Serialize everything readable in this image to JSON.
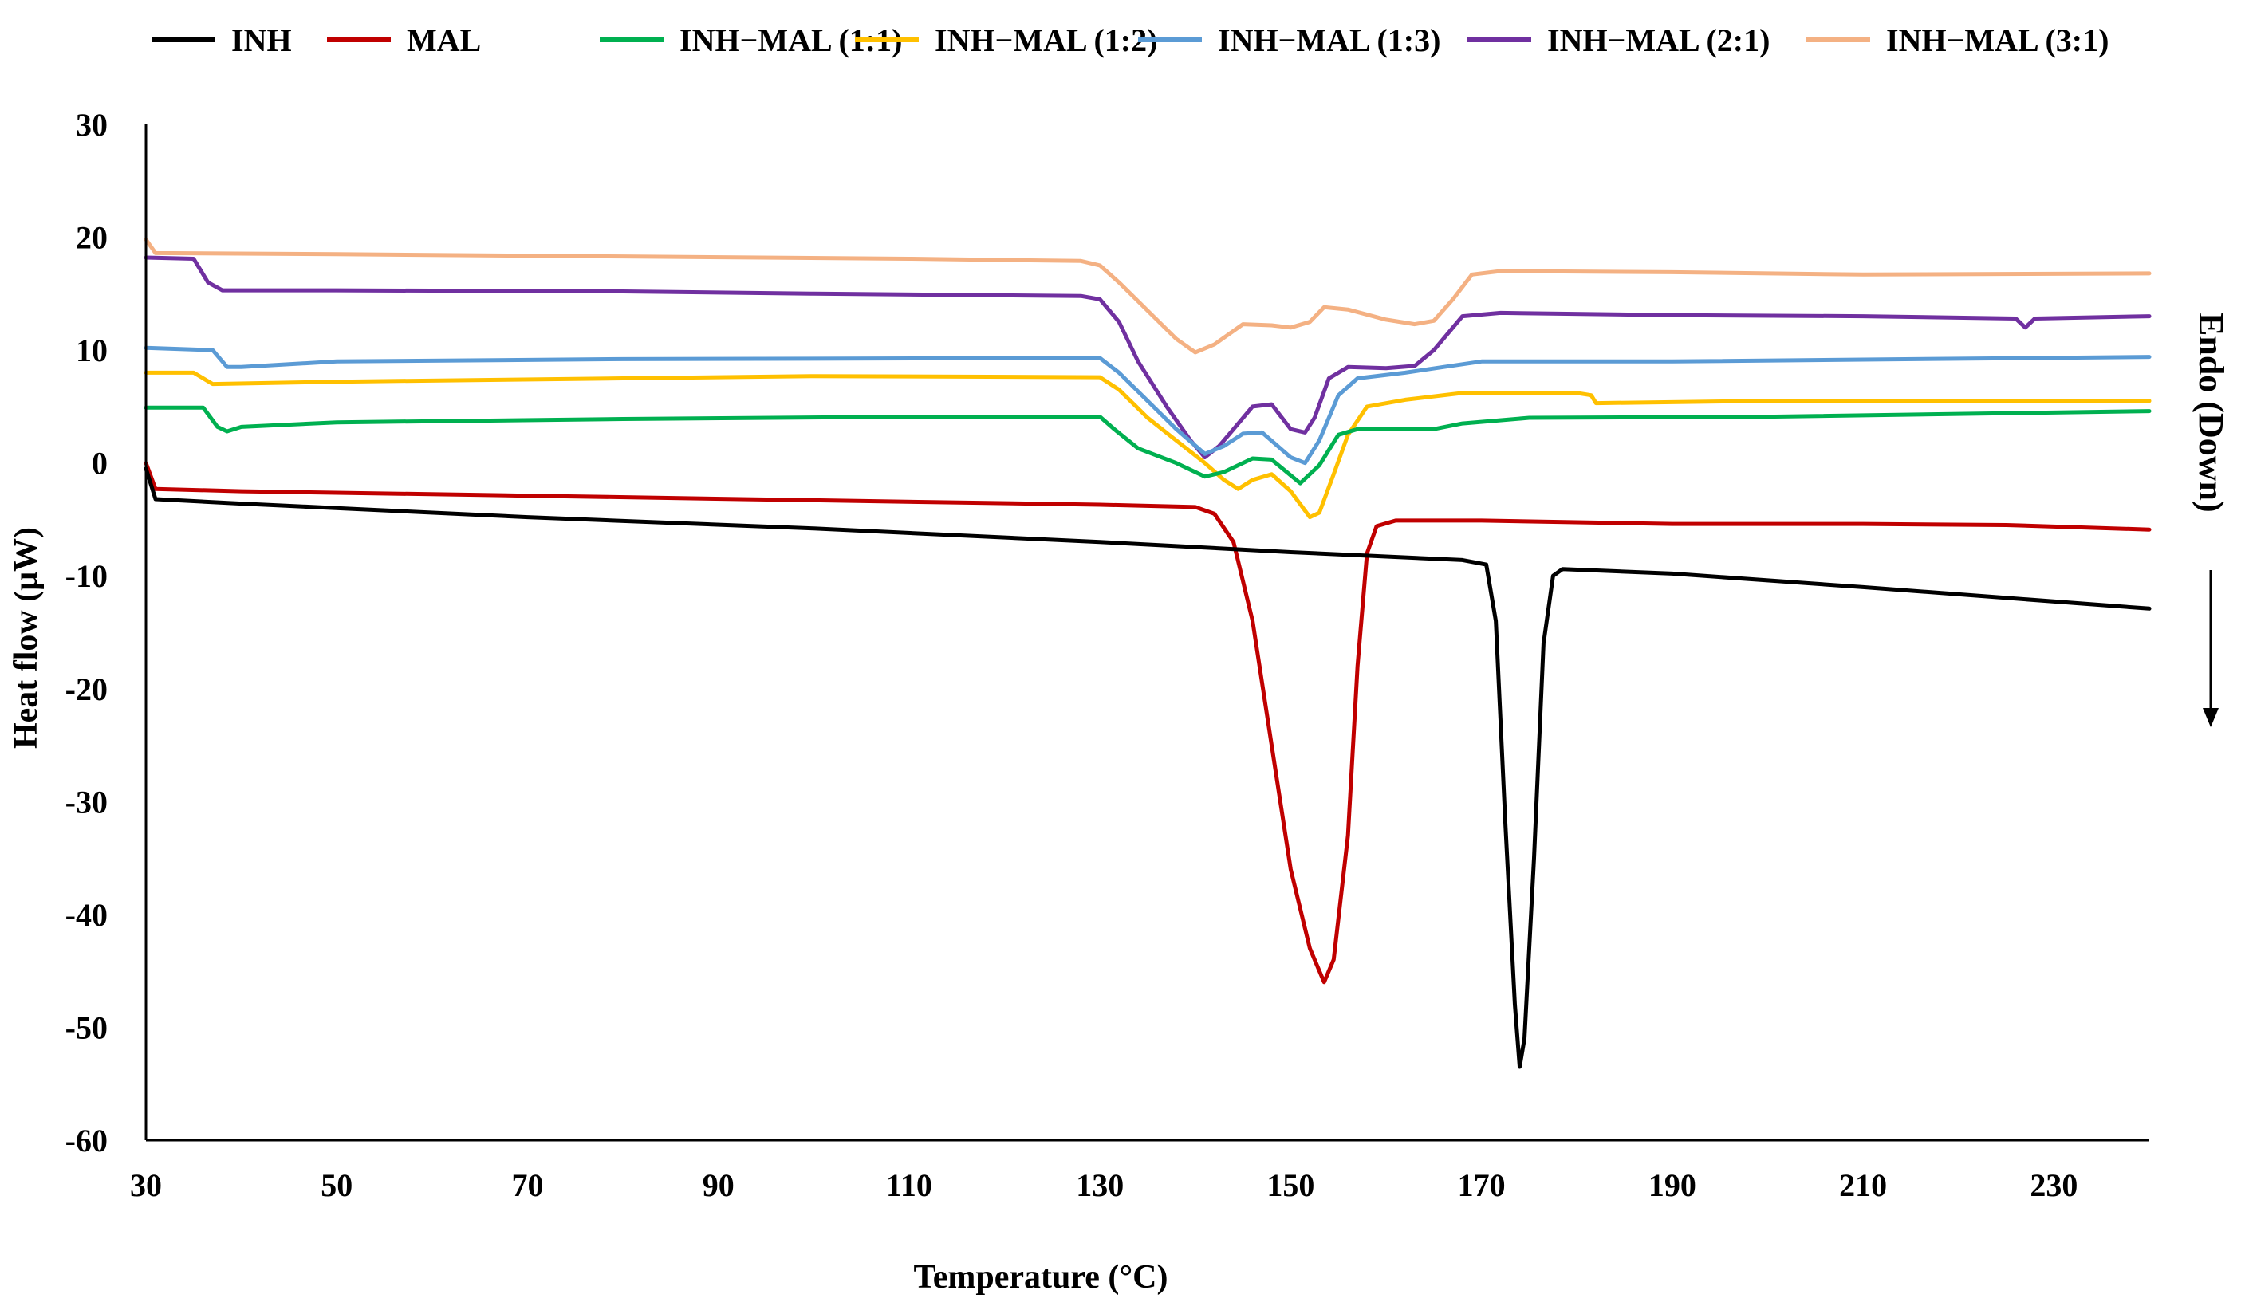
{
  "chart_data": {
    "type": "line",
    "title": "",
    "xlabel": "Temperature (°C)",
    "ylabel": "Heat flow (μW)",
    "annotation": "Endo (Down)",
    "xlim": [
      30,
      240
    ],
    "ylim": [
      -60,
      30
    ],
    "xticks": [
      30,
      50,
      70,
      90,
      110,
      130,
      150,
      170,
      190,
      210,
      230
    ],
    "yticks": [
      30,
      20,
      10,
      0,
      -10,
      -20,
      -30,
      -40,
      -50,
      -60
    ],
    "xtick_labels": [
      "30",
      "50",
      "70",
      "90",
      "110",
      "130",
      "150",
      "170",
      "190",
      "210",
      "230"
    ],
    "ytick_labels": [
      "30",
      "20",
      "10",
      "0",
      "-10",
      "-20",
      "-30",
      "-40",
      "-50",
      "-60"
    ],
    "legend_position": "top",
    "series": [
      {
        "name": "INH",
        "color": "#000000",
        "points": [
          [
            30,
            -0.5
          ],
          [
            31,
            -3.2
          ],
          [
            40,
            -3.6
          ],
          [
            70,
            -4.8
          ],
          [
            100,
            -5.8
          ],
          [
            130,
            -7
          ],
          [
            150,
            -7.9
          ],
          [
            168,
            -8.6
          ],
          [
            170.5,
            -9
          ],
          [
            171.5,
            -14
          ],
          [
            172.5,
            -32
          ],
          [
            173.5,
            -48
          ],
          [
            174,
            -53.5
          ],
          [
            174.5,
            -51
          ],
          [
            175.5,
            -35
          ],
          [
            176.5,
            -16
          ],
          [
            177.5,
            -10
          ],
          [
            178.5,
            -9.4
          ],
          [
            190,
            -9.8
          ],
          [
            210,
            -11
          ],
          [
            240,
            -12.9
          ]
        ]
      },
      {
        "name": "MAL",
        "color": "#C00000",
        "points": [
          [
            30,
            0
          ],
          [
            31,
            -2.3
          ],
          [
            40,
            -2.5
          ],
          [
            70,
            -2.9
          ],
          [
            100,
            -3.3
          ],
          [
            130,
            -3.7
          ],
          [
            140,
            -3.9
          ],
          [
            142,
            -4.5
          ],
          [
            144,
            -7
          ],
          [
            146,
            -14
          ],
          [
            148,
            -25
          ],
          [
            150,
            -36
          ],
          [
            152,
            -43
          ],
          [
            153.5,
            -46
          ],
          [
            154.5,
            -44
          ],
          [
            156,
            -33
          ],
          [
            157,
            -18
          ],
          [
            158,
            -8
          ],
          [
            159,
            -5.6
          ],
          [
            161,
            -5.1
          ],
          [
            170,
            -5.1
          ],
          [
            190,
            -5.4
          ],
          [
            210,
            -5.4
          ],
          [
            225,
            -5.5
          ],
          [
            240,
            -5.9
          ]
        ]
      },
      {
        "name": "INH−MAL (1:1)",
        "color": "#00B050",
        "points": [
          [
            30,
            4.9
          ],
          [
            36,
            4.9
          ],
          [
            37.5,
            3.2
          ],
          [
            38.5,
            2.8
          ],
          [
            40,
            3.2
          ],
          [
            50,
            3.6
          ],
          [
            80,
            3.9
          ],
          [
            110,
            4.1
          ],
          [
            130,
            4.1
          ],
          [
            131.5,
            3
          ],
          [
            134,
            1.3
          ],
          [
            138,
            0
          ],
          [
            141,
            -1.2
          ],
          [
            143,
            -0.8
          ],
          [
            146,
            0.4
          ],
          [
            148,
            0.3
          ],
          [
            151,
            -1.8
          ],
          [
            153,
            -0.2
          ],
          [
            155,
            2.5
          ],
          [
            157,
            3
          ],
          [
            165,
            3
          ],
          [
            168,
            3.5
          ],
          [
            175,
            4
          ],
          [
            200,
            4.1
          ],
          [
            240,
            4.6
          ]
        ]
      },
      {
        "name": "INH−MAL (1:2)",
        "color": "#FFC000",
        "points": [
          [
            30,
            8
          ],
          [
            35,
            8
          ],
          [
            37,
            7
          ],
          [
            50,
            7.2
          ],
          [
            80,
            7.5
          ],
          [
            100,
            7.7
          ],
          [
            130,
            7.6
          ],
          [
            132,
            6.5
          ],
          [
            135,
            4
          ],
          [
            138,
            2
          ],
          [
            141,
            0
          ],
          [
            143,
            -1.5
          ],
          [
            144.5,
            -2.3
          ],
          [
            146,
            -1.5
          ],
          [
            148,
            -1
          ],
          [
            150,
            -2.5
          ],
          [
            152,
            -4.8
          ],
          [
            153,
            -4.4
          ],
          [
            154.5,
            -1
          ],
          [
            156,
            2.5
          ],
          [
            158,
            5
          ],
          [
            162,
            5.6
          ],
          [
            168,
            6.2
          ],
          [
            180,
            6.2
          ],
          [
            181.5,
            6
          ],
          [
            182,
            5.3
          ],
          [
            200,
            5.5
          ],
          [
            240,
            5.5
          ]
        ]
      },
      {
        "name": "INH−MAL (1:3)",
        "color": "#5B9BD5",
        "points": [
          [
            30,
            10.2
          ],
          [
            37,
            10
          ],
          [
            38.5,
            8.5
          ],
          [
            40,
            8.5
          ],
          [
            50,
            9
          ],
          [
            80,
            9.2
          ],
          [
            130,
            9.3
          ],
          [
            132,
            8
          ],
          [
            135,
            5.5
          ],
          [
            138,
            3
          ],
          [
            141,
            0.8
          ],
          [
            143,
            1.5
          ],
          [
            145,
            2.6
          ],
          [
            147,
            2.7
          ],
          [
            150,
            0.5
          ],
          [
            151.5,
            0
          ],
          [
            153,
            2
          ],
          [
            155,
            6
          ],
          [
            157,
            7.5
          ],
          [
            162,
            8
          ],
          [
            166,
            8.5
          ],
          [
            170,
            9
          ],
          [
            190,
            9
          ],
          [
            240,
            9.4
          ]
        ]
      },
      {
        "name": "INH−MAL (2:1)",
        "color": "#7030A0",
        "points": [
          [
            30,
            18.2
          ],
          [
            35,
            18.1
          ],
          [
            36.5,
            16
          ],
          [
            38,
            15.3
          ],
          [
            50,
            15.3
          ],
          [
            80,
            15.2
          ],
          [
            100,
            15
          ],
          [
            128,
            14.8
          ],
          [
            130,
            14.5
          ],
          [
            132,
            12.5
          ],
          [
            134,
            9
          ],
          [
            137,
            5
          ],
          [
            139.5,
            2
          ],
          [
            141,
            0.5
          ],
          [
            142.5,
            1.5
          ],
          [
            144,
            3
          ],
          [
            146,
            5
          ],
          [
            148,
            5.2
          ],
          [
            150,
            3
          ],
          [
            151.5,
            2.7
          ],
          [
            152.5,
            4
          ],
          [
            154,
            7.5
          ],
          [
            156,
            8.5
          ],
          [
            160,
            8.4
          ],
          [
            163,
            8.6
          ],
          [
            165,
            10
          ],
          [
            168,
            13
          ],
          [
            172,
            13.3
          ],
          [
            190,
            13.1
          ],
          [
            210,
            13
          ],
          [
            226,
            12.8
          ],
          [
            227,
            12
          ],
          [
            228,
            12.8
          ],
          [
            240,
            13
          ]
        ]
      },
      {
        "name": "INH−MAL (3:1)",
        "color": "#F4B183",
        "points": [
          [
            30,
            19.8
          ],
          [
            31,
            18.6
          ],
          [
            50,
            18.5
          ],
          [
            80,
            18.3
          ],
          [
            110,
            18.1
          ],
          [
            128,
            17.9
          ],
          [
            130,
            17.5
          ],
          [
            132,
            16
          ],
          [
            135,
            13.5
          ],
          [
            138,
            11
          ],
          [
            140,
            9.8
          ],
          [
            142,
            10.5
          ],
          [
            145,
            12.3
          ],
          [
            148,
            12.2
          ],
          [
            150,
            12
          ],
          [
            152,
            12.5
          ],
          [
            153.5,
            13.8
          ],
          [
            156,
            13.6
          ],
          [
            160,
            12.7
          ],
          [
            163,
            12.3
          ],
          [
            165,
            12.6
          ],
          [
            167,
            14.5
          ],
          [
            169,
            16.7
          ],
          [
            172,
            17
          ],
          [
            190,
            16.9
          ],
          [
            210,
            16.7
          ],
          [
            240,
            16.8
          ]
        ]
      }
    ]
  }
}
